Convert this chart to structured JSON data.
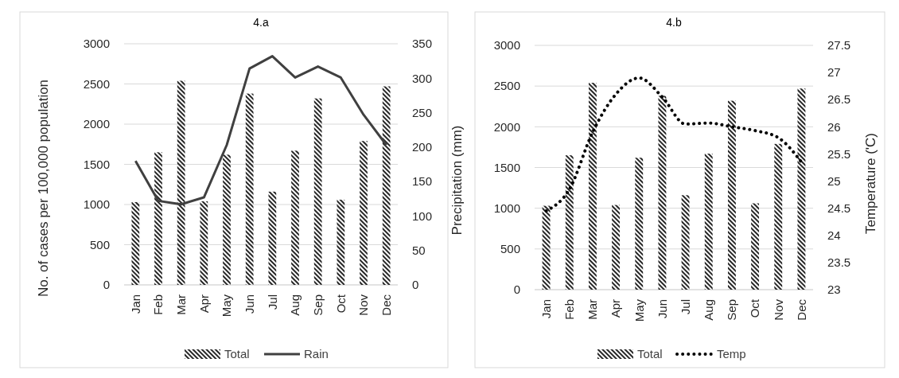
{
  "chart_data": [
    {
      "type": "bar",
      "title": "4.a",
      "ylabel": "No. of cases per 100,000 population",
      "y2label": "Precipitation (mm)",
      "categories": [
        "Jan",
        "Feb",
        "Mar",
        "Apr",
        "May",
        "Jun",
        "Jul",
        "Aug",
        "Sep",
        "Oct",
        "Nov",
        "Dec"
      ],
      "series": [
        {
          "name": "Total",
          "color": "#262626",
          "values": [
            1030,
            1650,
            2540,
            1040,
            1620,
            2380,
            1160,
            1670,
            2320,
            1060,
            1790,
            2470
          ]
        },
        {
          "name": "Rain",
          "type": "line",
          "axis": "y2",
          "color": "#404040",
          "line_style": "solid",
          "values": [
            180,
            122,
            117,
            127,
            203,
            314,
            332,
            301,
            317,
            301,
            247,
            203
          ]
        }
      ],
      "ylim": [
        0,
        3000
      ],
      "yticks": [
        0,
        500,
        1000,
        1500,
        2000,
        2500,
        3000
      ],
      "y2lim": [
        0,
        350
      ],
      "y2ticks": [
        0,
        50,
        100,
        150,
        200,
        250,
        300,
        350
      ],
      "grid": "y",
      "legend": "bottom",
      "marker": "none"
    },
    {
      "type": "bar",
      "title": "4.b",
      "y2label": "Temperature (ʹC)",
      "categories": [
        "Jan",
        "Feb",
        "Mar",
        "Apr",
        "May",
        "Jun",
        "Jul",
        "Aug",
        "Sep",
        "Oct",
        "Nov",
        "Dec"
      ],
      "series": [
        {
          "name": "Total",
          "color": "#262626",
          "values": [
            1030,
            1650,
            2540,
            1040,
            1620,
            2380,
            1160,
            1670,
            2320,
            1060,
            1790,
            2470
          ]
        },
        {
          "name": "Temp",
          "type": "line",
          "axis": "y2",
          "color": "#000000",
          "line_style": "dotted",
          "values": [
            24.45,
            24.85,
            25.9,
            26.6,
            26.9,
            26.55,
            26.05,
            26.07,
            26.0,
            25.93,
            25.8,
            25.35
          ]
        }
      ],
      "ylim": [
        0,
        3000
      ],
      "yticks": [
        0,
        500,
        1000,
        1500,
        2000,
        2500,
        3000
      ],
      "y2lim": [
        23,
        27.5
      ],
      "y2ticks": [
        23,
        23.5,
        24,
        24.5,
        25,
        25.5,
        26,
        26.5,
        27,
        27.5
      ],
      "grid": "y",
      "legend": "bottom",
      "marker": "none"
    }
  ]
}
